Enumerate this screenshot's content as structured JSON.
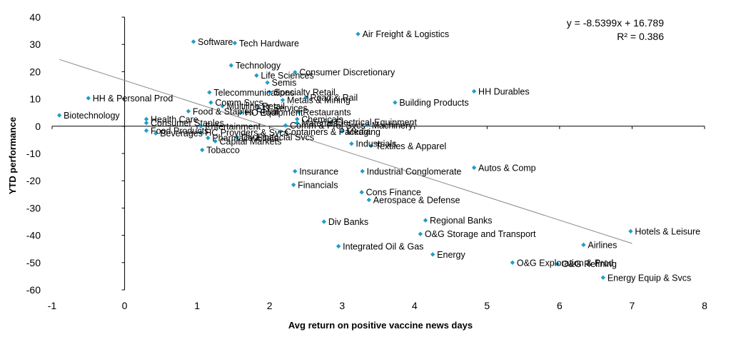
{
  "chart_data": {
    "type": "scatter",
    "xlabel": "Avg return on positive vaccine news days",
    "ylabel": "YTD performance",
    "xlim": [
      -1,
      8
    ],
    "ylim": [
      -60,
      40
    ],
    "xticks": [
      -1,
      0,
      1,
      2,
      3,
      4,
      5,
      6,
      7,
      8
    ],
    "yticks": [
      40,
      30,
      20,
      10,
      0,
      -10,
      -20,
      -30,
      -40,
      -50,
      -60
    ],
    "marker_color": "#1f9ec9",
    "trendline_color": "#8a8a8a",
    "trendline": {
      "slope": -8.5399,
      "intercept": 16.789,
      "x_range": [
        -0.9,
        7.0
      ],
      "equation": "y = -8.5399x + 16.789",
      "r_squared": "R² = 0.386"
    },
    "points": [
      {
        "label": "Air Freight & Logistics",
        "x": 3.22,
        "y": 33.8
      },
      {
        "label": "Software",
        "x": 0.95,
        "y": 31.0
      },
      {
        "label": "Tech Hardware",
        "x": 1.52,
        "y": 30.5
      },
      {
        "label": "Technology",
        "x": 1.47,
        "y": 22.3
      },
      {
        "label": "Consumer Discretionary",
        "x": 2.35,
        "y": 19.8
      },
      {
        "label": "Life Sciences",
        "x": 1.82,
        "y": 18.6
      },
      {
        "label": "Semis",
        "x": 1.97,
        "y": 16.0
      },
      {
        "label": "HH Durables",
        "x": 4.82,
        "y": 12.8
      },
      {
        "label": "Telecommunications",
        "x": 1.17,
        "y": 12.4
      },
      {
        "label": "Specialty Retail",
        "x": 2.0,
        "y": 12.5
      },
      {
        "label": "Road & Rail",
        "x": 2.5,
        "y": 10.6
      },
      {
        "label": "HH & Personal Prod",
        "x": -0.5,
        "y": 10.3
      },
      {
        "label": "Metals & Mining",
        "x": 2.18,
        "y": 9.6
      },
      {
        "label": "Building Products",
        "x": 3.73,
        "y": 8.7
      },
      {
        "label": "Comm Svcs",
        "x": 1.19,
        "y": 8.7
      },
      {
        "label": "Multiline Retail",
        "x": 1.35,
        "y": 7.4
      },
      {
        "label": "IT Services",
        "x": 1.85,
        "y": 6.8
      },
      {
        "label": "Food & Staples Retail",
        "x": 0.88,
        "y": 5.5
      },
      {
        "label": "HC Equipment",
        "x": 1.6,
        "y": 5.0
      },
      {
        "label": "Restaurants",
        "x": 2.4,
        "y": 5.2
      },
      {
        "label": "Biotechnology",
        "x": -0.9,
        "y": 4.0
      },
      {
        "label": "Health Care",
        "x": 0.3,
        "y": 2.6
      },
      {
        "label": "Chemicals",
        "x": 2.38,
        "y": 2.6
      },
      {
        "label": "Consumer Staples",
        "x": 0.3,
        "y": 1.2
      },
      {
        "label": "Materials",
        "x": 2.38,
        "y": 1.2
      },
      {
        "label": "Electrical Equipment",
        "x": 2.85,
        "y": 1.5
      },
      {
        "label": "Entertainment",
        "x": 1.05,
        "y": 0.0
      },
      {
        "label": "Comm & Prof Svcs",
        "x": 2.22,
        "y": 0.3
      },
      {
        "label": "Machinery",
        "x": 3.35,
        "y": 0.4
      },
      {
        "label": "Food Products",
        "x": 0.3,
        "y": -1.6
      },
      {
        "label": "HC Providers & Svcs",
        "x": 1.05,
        "y": -2.3
      },
      {
        "label": "Beverages",
        "x": 0.43,
        "y": -2.6
      },
      {
        "label": "Containers & Packaging",
        "x": 2.15,
        "y": -2.0
      },
      {
        "label": "Media",
        "x": 3.0,
        "y": -1.9
      },
      {
        "label": "Div Financial Svcs",
        "x": 1.55,
        "y": -4.0
      },
      {
        "label": "Pharmaceuticals",
        "x": 1.15,
        "y": -4.3
      },
      {
        "label": "Capital Markets",
        "x": 1.25,
        "y": -5.5
      },
      {
        "label": "Industrials",
        "x": 3.13,
        "y": -6.4
      },
      {
        "label": "Textiles & Apparel",
        "x": 3.4,
        "y": -7.2
      },
      {
        "label": "Tobacco",
        "x": 1.07,
        "y": -8.7
      },
      {
        "label": "Autos & Comp",
        "x": 4.82,
        "y": -15.2
      },
      {
        "label": "Insurance",
        "x": 2.35,
        "y": -16.5
      },
      {
        "label": "Industrial Conglomerate",
        "x": 3.28,
        "y": -16.5
      },
      {
        "label": "Financials",
        "x": 2.33,
        "y": -21.5
      },
      {
        "label": "Cons Finance",
        "x": 3.27,
        "y": -24.2
      },
      {
        "label": "Aerospace & Defense",
        "x": 3.37,
        "y": -27.0
      },
      {
        "label": "Div Banks",
        "x": 2.75,
        "y": -35.0
      },
      {
        "label": "Regional Banks",
        "x": 4.15,
        "y": -34.5
      },
      {
        "label": "Hotels & Leisure",
        "x": 6.98,
        "y": -38.5
      },
      {
        "label": "O&G Storage and Transport",
        "x": 4.08,
        "y": -39.5
      },
      {
        "label": "Airlines",
        "x": 6.33,
        "y": -43.5
      },
      {
        "label": "Integrated Oil & Gas",
        "x": 2.95,
        "y": -44.0
      },
      {
        "label": "Energy",
        "x": 4.25,
        "y": -47.0
      },
      {
        "label": "O&G Exploration & Prod",
        "x": 5.35,
        "y": -50.0
      },
      {
        "label": "O&G Refining",
        "x": 5.97,
        "y": -50.5
      },
      {
        "label": "Energy Equip & Svcs",
        "x": 6.6,
        "y": -55.5
      }
    ]
  }
}
